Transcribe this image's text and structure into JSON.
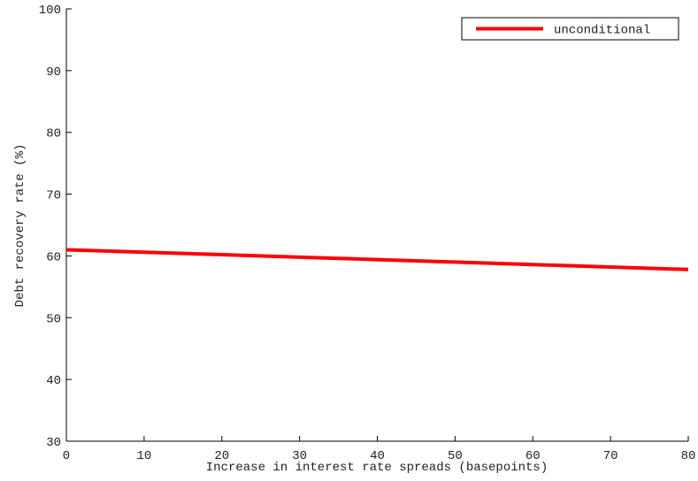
{
  "chart_data": {
    "type": "line",
    "xlabel": "Increase in interest rate spreads (basepoints)",
    "ylabel": "Debt recovery rate (%)",
    "x": [
      0,
      10,
      20,
      30,
      40,
      50,
      60,
      70,
      80
    ],
    "series": [
      {
        "name": "unconditional",
        "color": "#ff0000",
        "values": [
          61,
          60.6,
          60.2,
          59.8,
          59.4,
          59.0,
          58.6,
          58.2,
          57.8
        ]
      }
    ],
    "xlim": [
      0,
      80
    ],
    "xticks": [
      0,
      10,
      20,
      30,
      40,
      50,
      60,
      70,
      80
    ],
    "ylim": [
      30,
      100
    ],
    "yticks": [
      30,
      40,
      50,
      60,
      70,
      80,
      90,
      100
    ],
    "grid": false,
    "legend": "upper right"
  }
}
